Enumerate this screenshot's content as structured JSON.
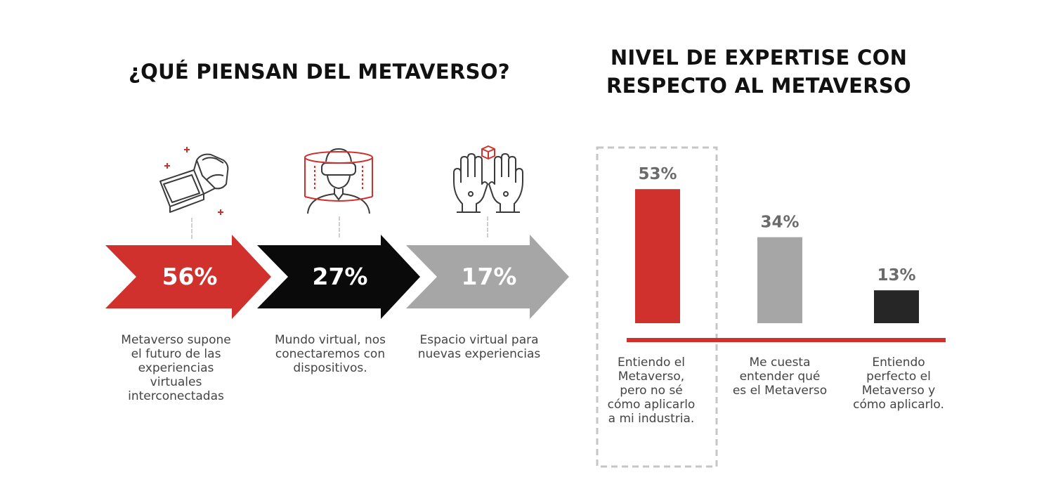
{
  "left_section": {
    "title": "¿QUÉ PIENSAN DEL METAVERSO?",
    "items": [
      {
        "value": "56%",
        "icon": "vr-headset-icon",
        "color": "#d0312d",
        "description": "Metaverso supone el futuro de las experiencias virtuales interconectadas"
      },
      {
        "value": "27%",
        "icon": "person-vr-icon",
        "color": "#0a0a0a",
        "description": "Mundo virtual, nos conectaremos con dispositivos."
      },
      {
        "value": "17%",
        "icon": "hands-cube-icon",
        "color": "#a6a6a6",
        "description": "Espacio virtual para nuevas experiencias"
      }
    ]
  },
  "chart_data": [
    {
      "type": "bar",
      "title": "¿QUÉ PIENSAN DEL METAVERSO?",
      "categories": [
        "Metaverso supone el futuro de las experiencias virtuales interconectadas",
        "Mundo virtual, nos conectaremos con dispositivos.",
        "Espacio virtual para nuevas experiencias"
      ],
      "values": [
        56,
        27,
        17
      ],
      "value_labels": [
        "56%",
        "27%",
        "17%"
      ],
      "unit": "%",
      "colors": [
        "#d0312d",
        "#0a0a0a",
        "#a6a6a6"
      ]
    },
    {
      "type": "bar",
      "title": "NIVEL DE EXPERTISE CON RESPECTO AL METAVERSO",
      "categories": [
        "Entiendo el Metaverso, pero no sé cómo aplicarlo a mi industria.",
        "Me cuesta entender qué es el Metaverso",
        "Entiendo perfecto el Metaverso y cómo aplicarlo."
      ],
      "values": [
        53,
        34,
        13
      ],
      "value_labels": [
        "53%",
        "34%",
        "13%"
      ],
      "unit": "%",
      "ylim": [
        0,
        60
      ],
      "colors": [
        "#d0312d",
        "#a6a6a6",
        "#262626"
      ],
      "highlighted_index": 0,
      "baseline_color": "#d0312d"
    }
  ],
  "right_section": {
    "title_line1": "NIVEL DE EXPERTISE CON",
    "title_line2": "RESPECTO AL METAVERSO",
    "label_lines": [
      [
        "Entiendo el",
        "Metaverso,",
        "pero no sé",
        "cómo aplicarlo",
        "a mi industria."
      ],
      [
        "Me cuesta",
        "entender qué",
        "es el Metaverso"
      ],
      [
        "Entiendo",
        "perfecto el",
        "Metaverso y",
        "cómo aplicarlo."
      ]
    ]
  }
}
